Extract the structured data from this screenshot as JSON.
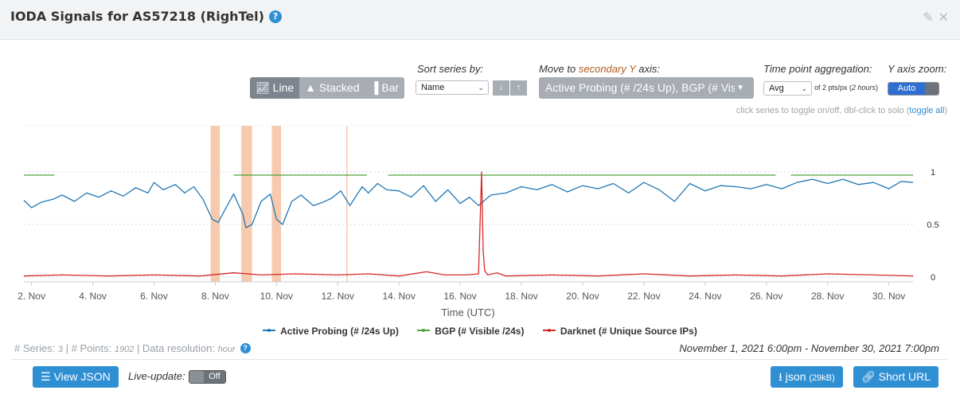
{
  "header": {
    "title": "IODA Signals for AS57218 (RighTel)",
    "help_glyph": "?",
    "edit_icon": "edit-icon",
    "close_icon": "close-icon"
  },
  "controls": {
    "chart_types": [
      "Line",
      "Stacked",
      "Bar"
    ],
    "active_chart_type": "Line",
    "sort_label": "Sort series by:",
    "sort_value": "Name",
    "secondary_label_pre": "Move to ",
    "secondary_label_accent": "secondary Y",
    "secondary_label_post": " axis:",
    "secondary_value": "Active Probing (# /24s Up), BGP (# Visible /24s)",
    "agg_label": "Time point aggregation:",
    "agg_value": "Avg",
    "agg_note_pre": "of 2 pts/px (",
    "agg_note_italic": "2 hours",
    "agg_note_post": ")",
    "zoom_label": "Y axis zoom:",
    "zoom_value": "Auto",
    "hint_text": "click series to toggle on/off, dbl-click to solo (",
    "hint_link": "toggle all",
    "hint_close": ")"
  },
  "colors": {
    "active_probing": "#1f77b4",
    "bgp": "#4aa23a",
    "darknet": "#d62728",
    "outage_band": "#f7c9ad",
    "accent": "#2f8fd3"
  },
  "chart_data": {
    "type": "line",
    "xlabel": "Time (UTC)",
    "x_ticks": [
      "2. Nov",
      "4. Nov",
      "6. Nov",
      "8. Nov",
      "10. Nov",
      "12. Nov",
      "14. Nov",
      "16. Nov",
      "18. Nov",
      "20. Nov",
      "22. Nov",
      "24. Nov",
      "26. Nov",
      "28. Nov",
      "30. Nov"
    ],
    "x_range_days": [
      1.75,
      30.79
    ],
    "y_ticks": [
      0,
      0.5,
      1
    ],
    "y_tick_labels": [
      "0",
      "0.5",
      "1"
    ],
    "ylim": [
      0,
      1.05
    ],
    "outage_bands": [
      [
        7.85,
        8.15
      ],
      [
        8.85,
        9.2
      ],
      [
        9.85,
        10.15
      ]
    ],
    "outage_line": 12.3,
    "series": [
      {
        "name": "Active Probing (# /24s Up)",
        "x": [
          1.75,
          2.0,
          2.3,
          2.7,
          3.0,
          3.4,
          3.8,
          4.2,
          4.6,
          5.0,
          5.4,
          5.8,
          6.0,
          6.3,
          6.7,
          7.0,
          7.3,
          7.6,
          7.9,
          8.1,
          8.3,
          8.6,
          8.9,
          9.0,
          9.2,
          9.5,
          9.8,
          10.0,
          10.2,
          10.5,
          10.8,
          11.2,
          11.5,
          11.8,
          12.1,
          12.4,
          12.8,
          13.0,
          13.3,
          13.6,
          14.0,
          14.4,
          14.8,
          15.2,
          15.6,
          16.0,
          16.3,
          16.6,
          17.0,
          17.5,
          18.0,
          18.5,
          19.0,
          19.5,
          20.0,
          20.5,
          21.0,
          21.5,
          22.0,
          22.5,
          23.0,
          23.5,
          24.0,
          24.5,
          25.0,
          25.5,
          26.0,
          26.5,
          27.0,
          27.5,
          28.0,
          28.5,
          29.0,
          29.5,
          30.0,
          30.4,
          30.79
        ],
        "values": [
          0.73,
          0.66,
          0.71,
          0.74,
          0.78,
          0.72,
          0.8,
          0.76,
          0.82,
          0.77,
          0.85,
          0.8,
          0.9,
          0.83,
          0.88,
          0.8,
          0.86,
          0.74,
          0.55,
          0.52,
          0.63,
          0.79,
          0.6,
          0.47,
          0.5,
          0.72,
          0.79,
          0.55,
          0.5,
          0.72,
          0.78,
          0.68,
          0.71,
          0.75,
          0.82,
          0.68,
          0.86,
          0.8,
          0.89,
          0.83,
          0.82,
          0.76,
          0.87,
          0.72,
          0.83,
          0.7,
          0.76,
          0.68,
          0.78,
          0.8,
          0.86,
          0.83,
          0.88,
          0.81,
          0.87,
          0.84,
          0.89,
          0.8,
          0.9,
          0.83,
          0.72,
          0.89,
          0.82,
          0.87,
          0.86,
          0.84,
          0.88,
          0.84,
          0.9,
          0.93,
          0.89,
          0.93,
          0.88,
          0.9,
          0.84,
          0.91,
          0.9
        ]
      },
      {
        "name": "BGP (# Visible /24s)",
        "segments": [
          {
            "x": [
              1.75,
              2.75
            ],
            "values": [
              0.97,
              0.97
            ]
          },
          {
            "x": [
              8.6,
              12.95
            ],
            "values": [
              0.97,
              0.97
            ]
          },
          {
            "x": [
              13.65,
              26.3
            ],
            "values": [
              0.97,
              0.97
            ]
          },
          {
            "x": [
              26.8,
              30.79
            ],
            "values": [
              0.97,
              0.97
            ]
          }
        ]
      },
      {
        "name": "Darknet (# Unique Source IPs)",
        "x": [
          1.75,
          3.0,
          4.5,
          6.0,
          7.5,
          8.6,
          9.5,
          10.6,
          12.0,
          13.0,
          14.0,
          14.9,
          15.5,
          16.2,
          16.6,
          16.7,
          16.75,
          16.8,
          16.9,
          17.2,
          17.5,
          19.0,
          20.5,
          22.0,
          23.5,
          25.0,
          26.5,
          28.0,
          29.5,
          30.79
        ],
        "values": [
          0.01,
          0.02,
          0.01,
          0.02,
          0.01,
          0.04,
          0.02,
          0.03,
          0.02,
          0.03,
          0.01,
          0.05,
          0.02,
          0.02,
          0.03,
          1.0,
          0.25,
          0.06,
          0.02,
          0.04,
          0.01,
          0.02,
          0.01,
          0.03,
          0.01,
          0.02,
          0.01,
          0.03,
          0.02,
          0.01
        ]
      }
    ]
  },
  "legend": [
    {
      "label": "Active Probing (# /24s Up)",
      "color": "#1f77b4"
    },
    {
      "label": "BGP (# Visible /24s)",
      "color": "#4aa23a"
    },
    {
      "label": "Darknet (# Unique Source IPs)",
      "color": "#d62728"
    }
  ],
  "stats": {
    "series_label": "# Series: ",
    "series_value": "3",
    "points_label": " | # Points: ",
    "points_value": "1902",
    "resolution_label": " | Data resolution: ",
    "resolution_value": "hour",
    "range": "November 1, 2021 6:00pm - November 30, 2021 7:00pm"
  },
  "footer": {
    "view_json": "View JSON",
    "live_update_label": "Live-update:",
    "live_update_value": "Off",
    "json_label": "json",
    "json_size": "(29kB)",
    "short_url": "Short URL"
  }
}
